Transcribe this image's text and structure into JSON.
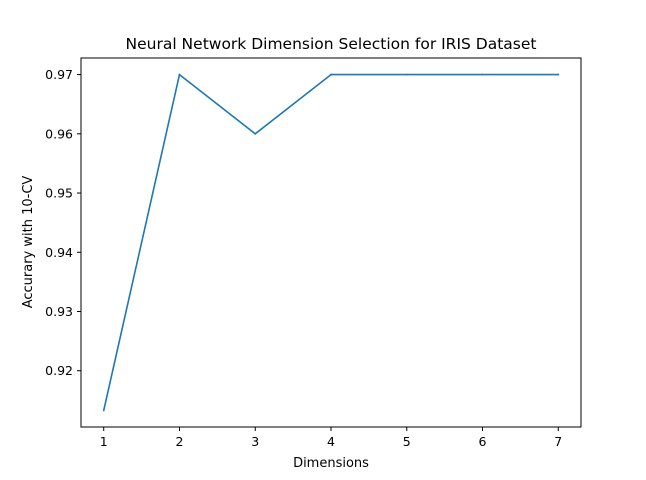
{
  "chart_data": {
    "type": "line",
    "title": "Neural Network Dimension Selection for IRIS Dataset",
    "xlabel": "Dimensions",
    "ylabel": "Accurary with 10-CV",
    "x": [
      1,
      2,
      3,
      4,
      5,
      6,
      7
    ],
    "series": [
      {
        "values": [
          0.9133,
          0.97,
          0.96,
          0.97,
          0.97,
          0.97,
          0.97
        ],
        "color": "#1f77b4"
      }
    ],
    "xlim": [
      0.7,
      7.3
    ],
    "ylim": [
      0.9105,
      0.9728
    ],
    "xticks": [
      "1",
      "2",
      "3",
      "4",
      "5",
      "6",
      "7"
    ],
    "yticks": [
      "0.92",
      "0.93",
      "0.94",
      "0.95",
      "0.96",
      "0.97"
    ],
    "grid": false,
    "legend": "none"
  }
}
